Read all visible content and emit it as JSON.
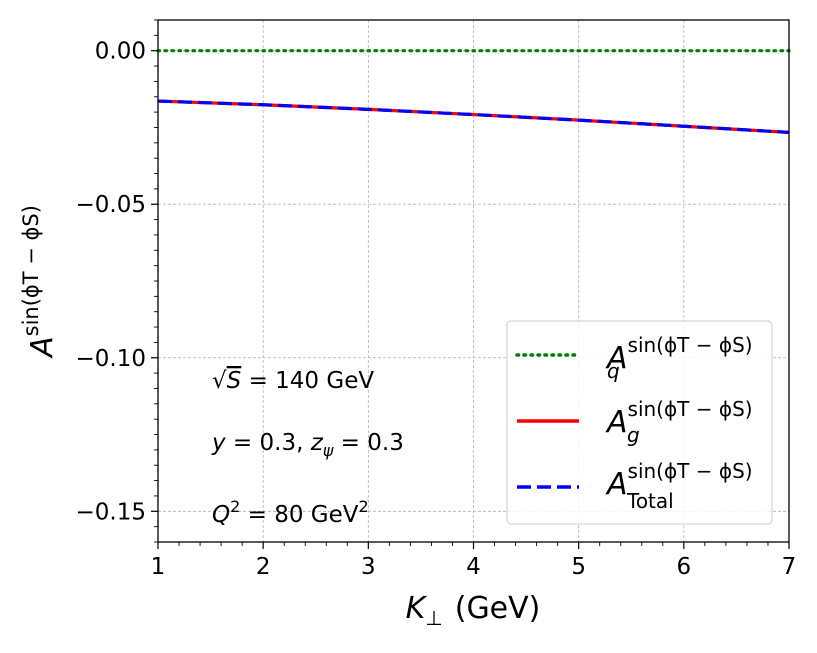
{
  "chart_data": {
    "type": "line",
    "xlabel": "K⊥ (GeV)",
    "xlabel_parts": {
      "main": "K",
      "sub": "⊥",
      "unit": "(GeV)"
    },
    "ylabel_parts": {
      "main": "A",
      "sup": "sin(ϕT − ϕS)"
    },
    "xlim": [
      1,
      7
    ],
    "ylim": [
      -0.16,
      0.01
    ],
    "xticks": [
      1,
      2,
      3,
      4,
      5,
      6,
      7
    ],
    "xtick_labels": [
      "1",
      "2",
      "3",
      "4",
      "5",
      "6",
      "7"
    ],
    "yticks": [
      0.0,
      -0.05,
      -0.1,
      -0.15
    ],
    "ytick_labels": [
      "0.00",
      "−0.05",
      "−0.10",
      "−0.15"
    ],
    "grid": true,
    "legend_position": "lower-right",
    "series": [
      {
        "name": "A_q^{sin(ϕT−ϕS)}",
        "legend_main": "A",
        "legend_sub": "q",
        "legend_sup": "sin(ϕT − ϕS)",
        "color": "#008000",
        "style": "dotted",
        "x": [
          1,
          2,
          3,
          4,
          5,
          6,
          7
        ],
        "values": [
          0,
          0,
          0,
          0,
          0,
          0,
          0
        ]
      },
      {
        "name": "A_g^{sin(ϕT−ϕS)}",
        "legend_main": "A",
        "legend_sub": "g",
        "legend_sup": "sin(ϕT − ϕS)",
        "color": "#ff0000",
        "style": "solid",
        "x": [
          1,
          2,
          3,
          4,
          5,
          6,
          7
        ],
        "values": [
          -0.0164,
          -0.0176,
          -0.0191,
          -0.0208,
          -0.0226,
          -0.0246,
          -0.0266
        ]
      },
      {
        "name": "A_Total^{sin(ϕT−ϕS)}",
        "legend_main": "A",
        "legend_sub": "Total",
        "legend_sup": "sin(ϕT − ϕS)",
        "color": "#0000ff",
        "style": "dashed",
        "x": [
          1,
          2,
          3,
          4,
          5,
          6,
          7
        ],
        "values": [
          -0.0164,
          -0.0176,
          -0.0191,
          -0.0208,
          -0.0226,
          -0.0246,
          -0.0266
        ]
      }
    ],
    "annotations": [
      {
        "id": "energy",
        "parts": [
          "√",
          "S",
          " = 140 GeV"
        ]
      },
      {
        "id": "kinematics",
        "parts": [
          "y",
          " = 0.3, ",
          "z",
          "ψ",
          " = 0.3"
        ]
      },
      {
        "id": "q2",
        "parts": [
          "Q",
          "2",
          " = 80 GeV",
          "2"
        ]
      }
    ]
  }
}
